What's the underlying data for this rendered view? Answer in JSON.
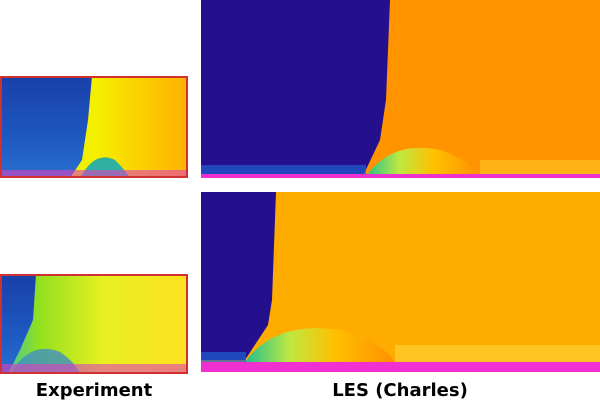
{
  "labels": {
    "experiment": "Experiment",
    "les": "LES (Charles)"
  }
}
